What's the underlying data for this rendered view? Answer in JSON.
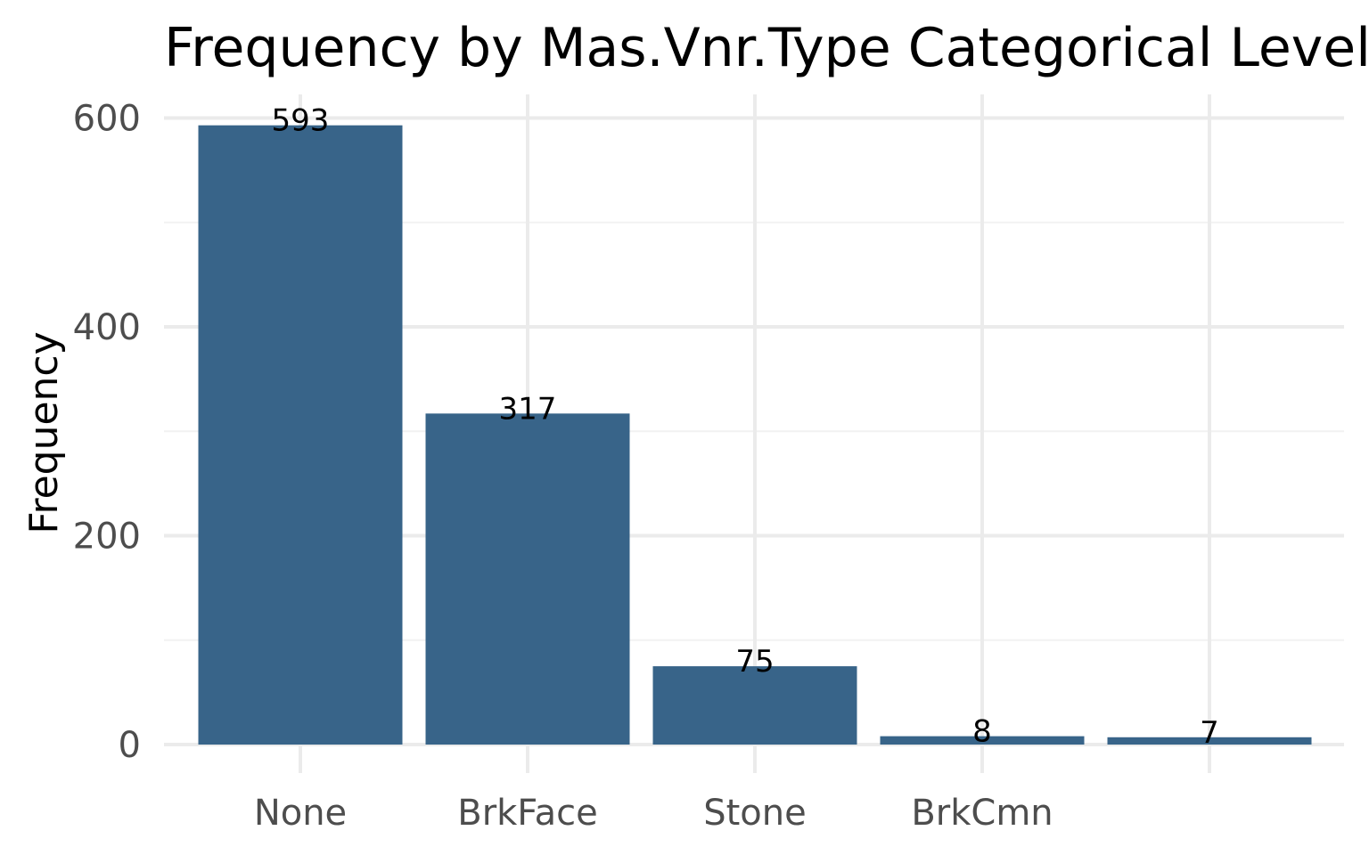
{
  "chart_data": {
    "type": "bar",
    "title": "Frequency by Mas.Vnr.Type Categorical Levels",
    "xlabel": "",
    "ylabel": "Frequency",
    "categories": [
      "None",
      "BrkFace",
      "Stone",
      "BrkCmn",
      ""
    ],
    "values": [
      593,
      317,
      75,
      8,
      7
    ],
    "ylim": [
      0,
      630
    ],
    "yticks": [
      0,
      200,
      400,
      600
    ],
    "grid": true,
    "legend": "none",
    "bar_color": "#386489"
  }
}
